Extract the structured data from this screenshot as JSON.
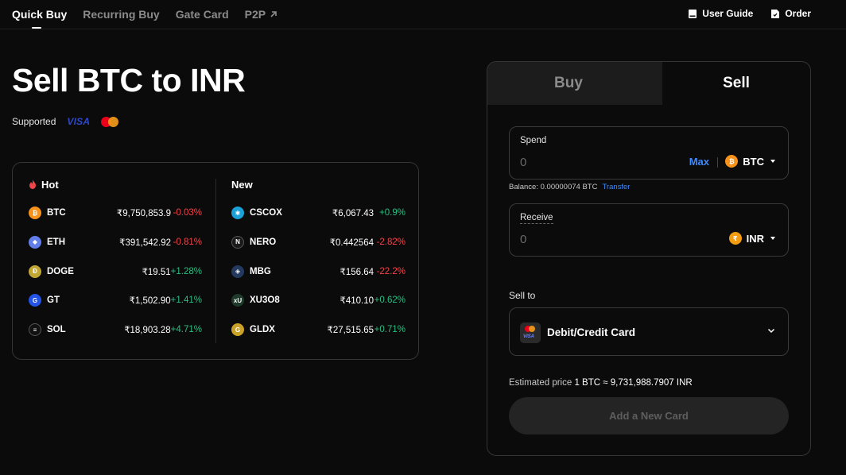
{
  "nav": {
    "tabs": [
      {
        "label": "Quick Buy"
      },
      {
        "label": "Recurring Buy"
      },
      {
        "label": "Gate Card"
      },
      {
        "label": "P2P"
      }
    ],
    "user_guide": "User Guide",
    "order": "Order"
  },
  "page": {
    "title": "Sell BTC to INR",
    "supported_label": "Supported",
    "visa_text": "VISA"
  },
  "market": {
    "hot_label": "Hot",
    "new_label": "New",
    "hot": [
      {
        "symbol": "BTC",
        "price": "₹9,750,853.9",
        "change": "-0.03%",
        "color": "#f7931a",
        "glyph": "₿"
      },
      {
        "symbol": "ETH",
        "price": "₹391,542.92",
        "change": "-0.81%",
        "color": "#627eea",
        "glyph": "◆"
      },
      {
        "symbol": "DOGE",
        "price": "₹19.51",
        "change": "+1.28%",
        "color": "#c2a633",
        "glyph": "Ð"
      },
      {
        "symbol": "GT",
        "price": "₹1,502.90",
        "change": "+1.41%",
        "color": "#2354e6",
        "glyph": "G"
      },
      {
        "symbol": "SOL",
        "price": "₹18,903.28",
        "change": "+4.71%",
        "color": "#111111",
        "glyph": "≡"
      }
    ],
    "new": [
      {
        "symbol": "CSCOX",
        "price": "₹6,067.43",
        "change": "+0.9%",
        "color": "#1ba0d7",
        "glyph": "✱"
      },
      {
        "symbol": "NERO",
        "price": "₹0.442564",
        "change": "-2.82%",
        "color": "#1a1a1a",
        "glyph": "N"
      },
      {
        "symbol": "MBG",
        "price": "₹156.64",
        "change": "-22.2%",
        "color": "#233a5e",
        "glyph": "◈"
      },
      {
        "symbol": "XU3O8",
        "price": "₹410.10",
        "change": "+0.62%",
        "color": "#1f3a2a",
        "glyph": "xU"
      },
      {
        "symbol": "GLDX",
        "price": "₹27,515.65",
        "change": "+0.71%",
        "color": "#c9a227",
        "glyph": "G"
      }
    ],
    "positive_color": "#2dbd85",
    "negative_color": "#f0444a"
  },
  "trade": {
    "buy_tab": "Buy",
    "sell_tab": "Sell",
    "spend": {
      "label": "Spend",
      "placeholder": "0",
      "max": "Max",
      "currency": "BTC"
    },
    "balance_text": "Balance: 0.00000074 BTC",
    "transfer": "Transfer",
    "receive": {
      "label": "Receive",
      "placeholder": "0",
      "currency": "INR"
    },
    "sell_to_label": "Sell to",
    "method": {
      "label": "Debit/Credit Card",
      "visa_text": "VISA"
    },
    "estimated_label": "Estimated price",
    "estimated_value": "1 BTC ≈ 9,731,988.7907 INR",
    "add_card": "Add a New Card",
    "accent": "#3d8bff"
  }
}
